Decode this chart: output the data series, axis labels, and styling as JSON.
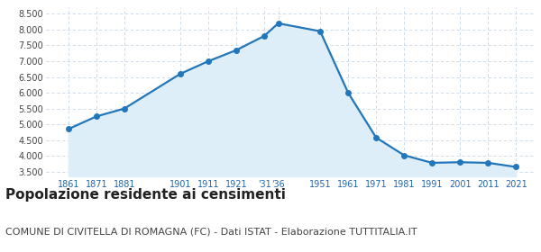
{
  "years": [
    1861,
    1871,
    1881,
    1901,
    1911,
    1921,
    1931,
    1936,
    1951,
    1961,
    1971,
    1981,
    1991,
    2001,
    2011,
    2021
  ],
  "population": [
    4850,
    5250,
    5500,
    6600,
    7000,
    7350,
    7800,
    8200,
    7950,
    6000,
    4580,
    4020,
    3780,
    3800,
    3780,
    3650
  ],
  "line_color": "#2277bb",
  "fill_color": "#ddeef8",
  "marker_color": "#2277bb",
  "bg_color": "#ffffff",
  "grid_color": "#c8d8e8",
  "title": "Popolazione residente ai censimenti",
  "subtitle": "COMUNE DI CIVITELLA DI ROMAGNA (FC) - Dati ISTAT - Elaborazione TUTTITALIA.IT",
  "title_fontsize": 11,
  "subtitle_fontsize": 8,
  "ylabel_ticks": [
    3500,
    4000,
    4500,
    5000,
    5500,
    6000,
    6500,
    7000,
    7500,
    8000,
    8500
  ],
  "ylim": [
    3350,
    8700
  ],
  "xlim_left": 1853,
  "xlim_right": 2028,
  "title_color": "#222222",
  "subtitle_color": "#444444",
  "x_tick_positions": [
    1861,
    1871,
    1881,
    1901,
    1911,
    1921,
    1931,
    1936,
    1951,
    1961,
    1971,
    1981,
    1991,
    2001,
    2011,
    2021
  ],
  "x_tick_labels": [
    "1861",
    "1871",
    "1881",
    "1901",
    "1911",
    "1921",
    "'31",
    "'36",
    "1951",
    "1961",
    "1971",
    "1981",
    "1991",
    "2001",
    "2011",
    "2021"
  ]
}
